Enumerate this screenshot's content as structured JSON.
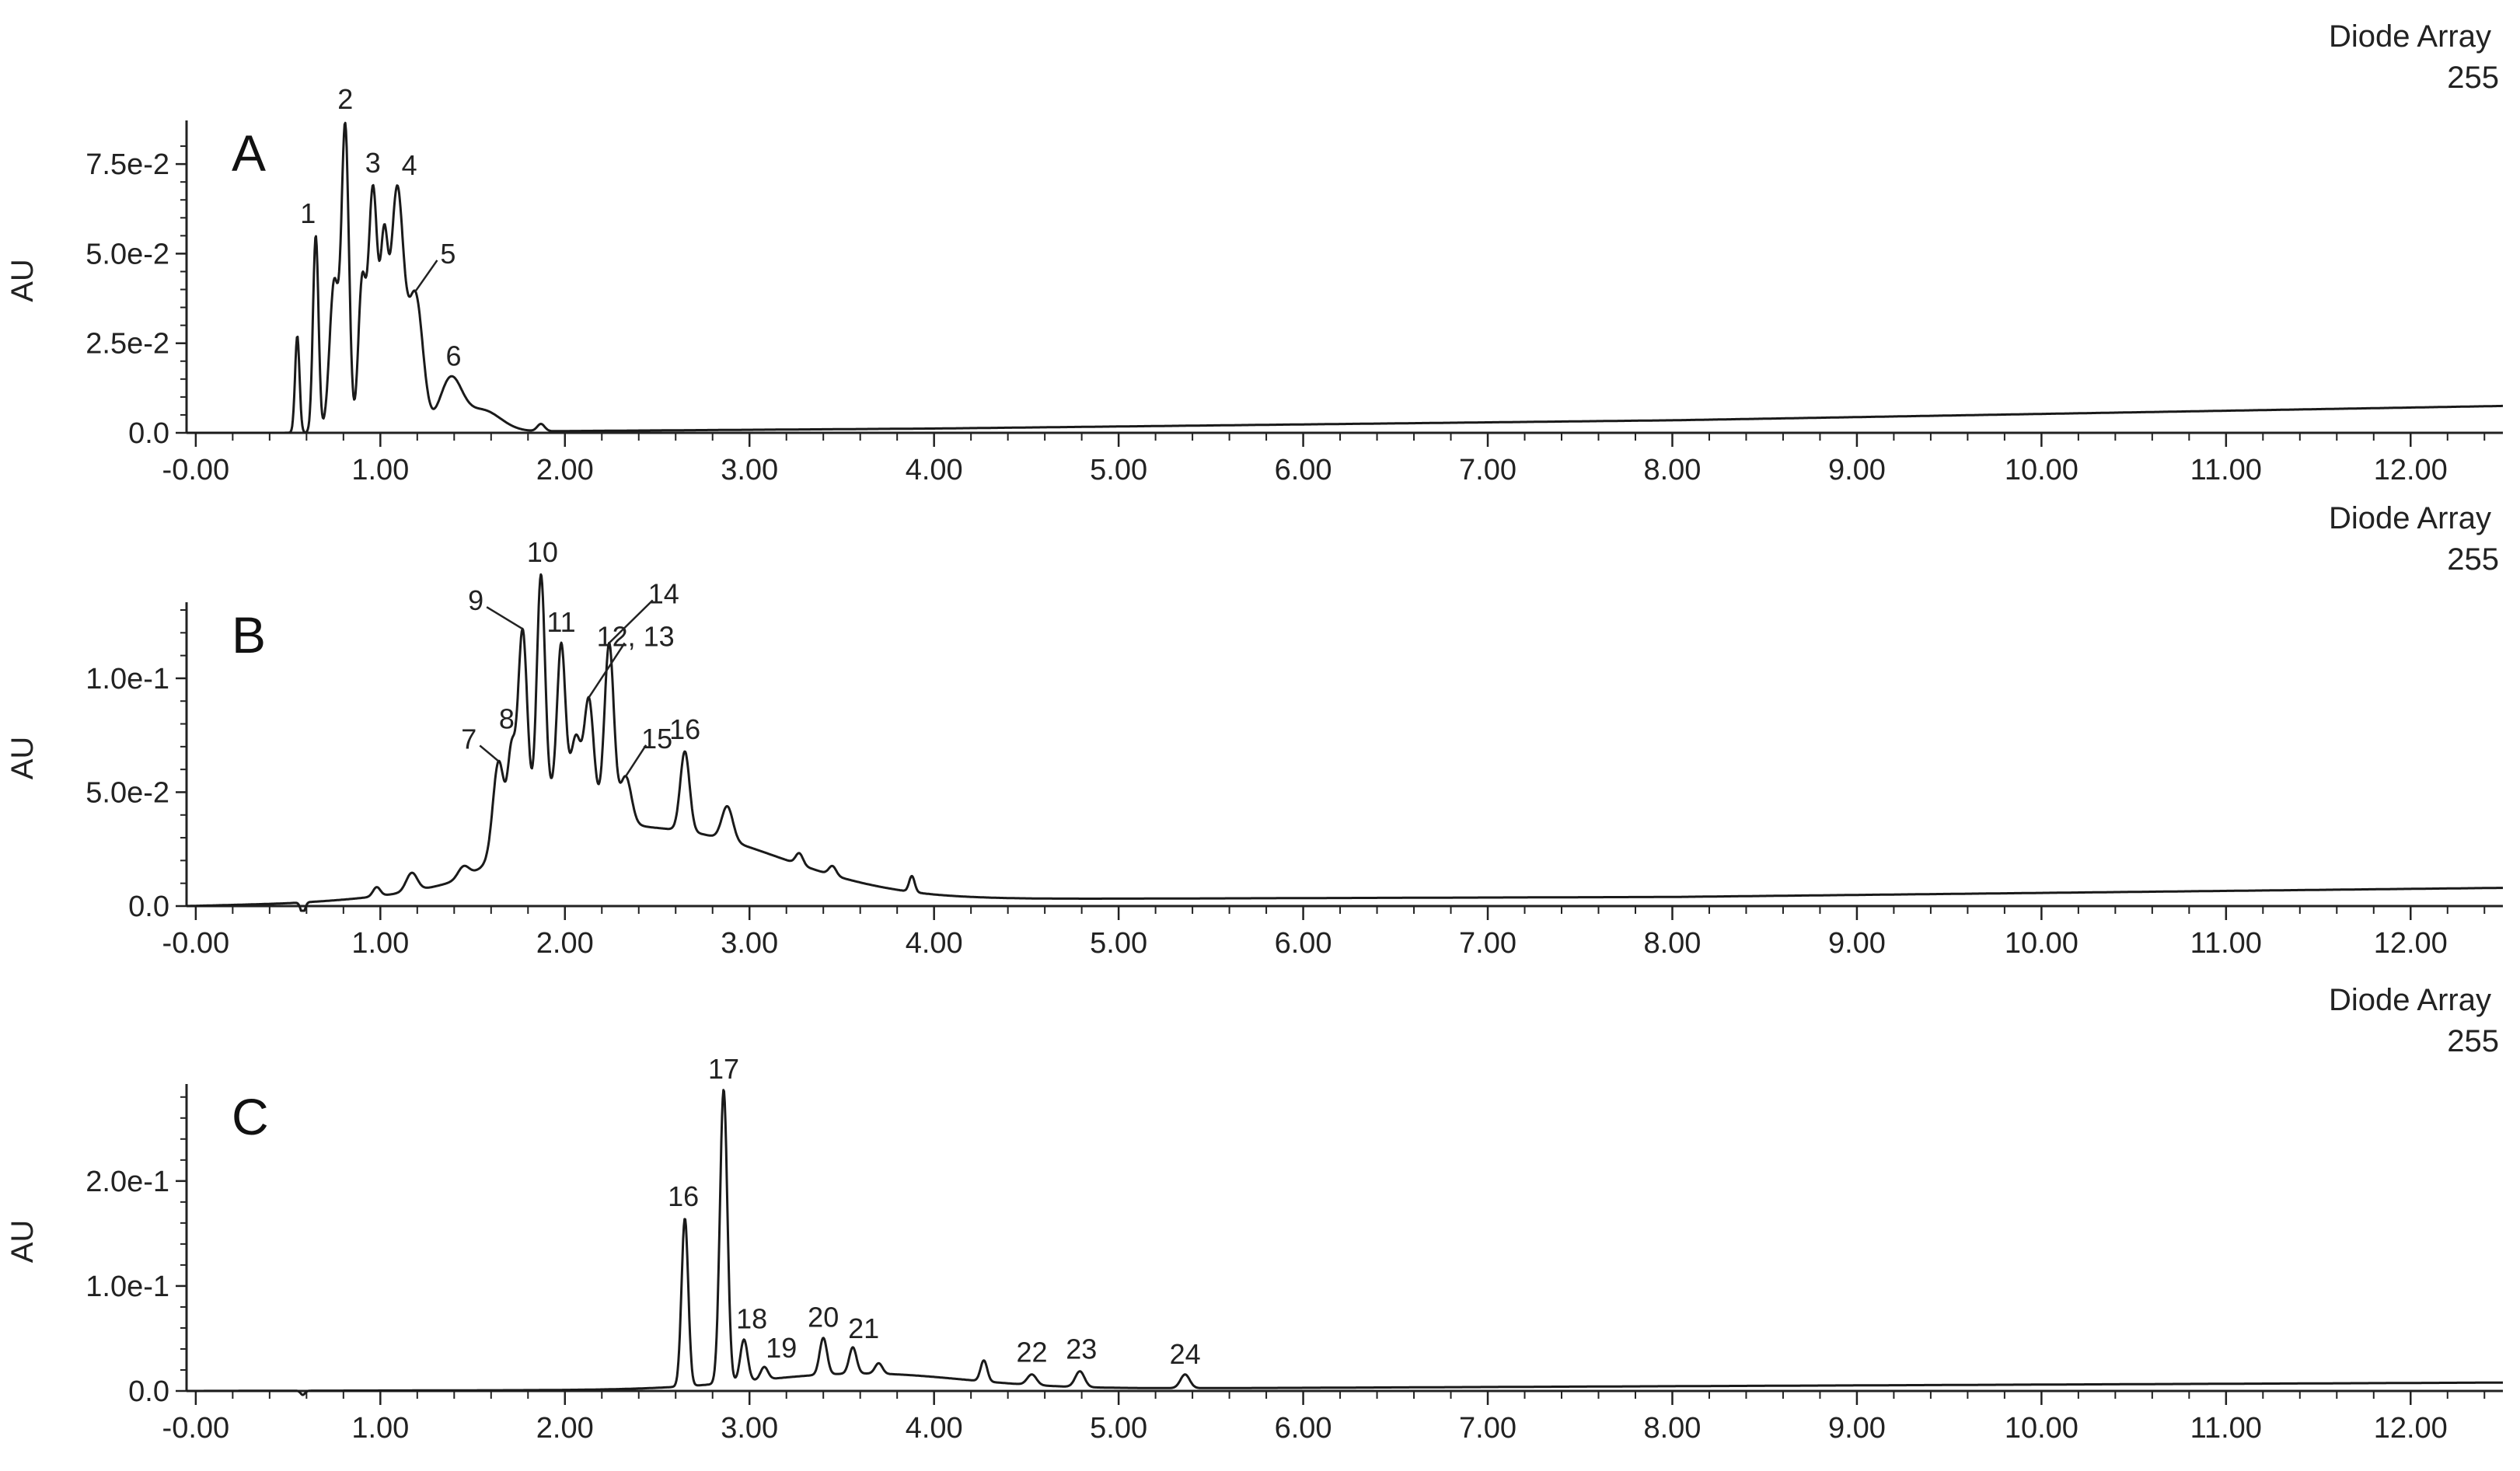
{
  "chart_data": [
    {
      "type": "line",
      "panel_label": "A",
      "detector": "Diode Array",
      "wavelength": "255",
      "ylabel": "AU",
      "xlim": [
        -0.05,
        12.5
      ],
      "ylim": [
        0,
        0.085
      ],
      "x_ticks": [
        0,
        1,
        2,
        3,
        4,
        5,
        6,
        7,
        8,
        9,
        10,
        11,
        12
      ],
      "x_tick_labels": [
        "-0.00",
        "1.00",
        "2.00",
        "3.00",
        "4.00",
        "5.00",
        "6.00",
        "7.00",
        "8.00",
        "9.00",
        "10.00",
        "11.00",
        "12.00"
      ],
      "y_ticks": [
        0,
        0.025,
        0.05,
        0.075
      ],
      "y_tick_labels": [
        "0.0",
        "2.5e-2",
        "5.0e-2",
        "7.5e-2"
      ],
      "baseline": [
        [
          -0.05,
          0.0
        ],
        [
          0.45,
          0.0
        ],
        [
          2.0,
          0.0005
        ],
        [
          4.0,
          0.0012
        ],
        [
          8.0,
          0.0035
        ],
        [
          12.5,
          0.0075
        ]
      ],
      "peaks": [
        {
          "x": 0.55,
          "y": 0.027,
          "w": 0.012
        },
        {
          "label": "1",
          "x": 0.65,
          "y": 0.055,
          "w": 0.015
        },
        {
          "x": 0.75,
          "y": 0.042,
          "w": 0.025
        },
        {
          "label": "2",
          "x": 0.81,
          "y": 0.084,
          "w": 0.02
        },
        {
          "x": 0.9,
          "y": 0.04,
          "w": 0.02
        },
        {
          "label": "3",
          "x": 0.96,
          "y": 0.068,
          "w": 0.025
        },
        {
          "x": 1.02,
          "y": 0.045,
          "w": 0.02
        },
        {
          "label": "4",
          "x": 1.09,
          "y": 0.067,
          "w": 0.035
        },
        {
          "label": "5",
          "x": 1.19,
          "y": 0.038,
          "w": 0.04
        },
        {
          "label": "6",
          "x": 1.38,
          "y": 0.014,
          "w": 0.06
        },
        {
          "x": 1.55,
          "y": 0.006,
          "w": 0.1
        },
        {
          "x": 1.87,
          "y": 0.002,
          "w": 0.02
        }
      ]
    },
    {
      "type": "line",
      "panel_label": "B",
      "detector": "Diode Array",
      "wavelength": "255",
      "ylabel": "AU",
      "xlim": [
        -0.05,
        12.5
      ],
      "ylim": [
        0,
        0.13
      ],
      "x_ticks": [
        0,
        1,
        2,
        3,
        4,
        5,
        6,
        7,
        8,
        9,
        10,
        11,
        12
      ],
      "x_tick_labels": [
        "-0.00",
        "1.00",
        "2.00",
        "3.00",
        "4.00",
        "5.00",
        "6.00",
        "7.00",
        "8.00",
        "9.00",
        "10.00",
        "11.00",
        "12.00"
      ],
      "y_ticks": [
        0,
        0.05,
        0.1
      ],
      "y_tick_labels": [
        "0.0",
        "5.0e-2",
        "1.0e-1"
      ],
      "baseline": [
        [
          -0.05,
          0.0
        ],
        [
          0.5,
          0.001
        ],
        [
          1.2,
          0.003
        ],
        [
          2.0,
          0.004
        ],
        [
          4.0,
          0.003
        ],
        [
          8.0,
          0.004
        ],
        [
          12.5,
          0.008
        ]
      ],
      "broad": [
        {
          "x": 2.5,
          "y": 0.03,
          "w": 0.65
        },
        {
          "x": 1.95,
          "y": 0.025,
          "w": 0.2
        }
      ],
      "peaks": [
        {
          "x": 0.58,
          "y": -0.005,
          "w": 0.012
        },
        {
          "x": 0.98,
          "y": 0.004,
          "w": 0.02
        },
        {
          "x": 1.17,
          "y": 0.008,
          "w": 0.03
        },
        {
          "x": 1.45,
          "y": 0.005,
          "w": 0.03
        },
        {
          "label": "7",
          "x": 1.64,
          "y": 0.04,
          "w": 0.03
        },
        {
          "label": "8",
          "x": 1.71,
          "y": 0.035,
          "w": 0.02
        },
        {
          "label": "9",
          "x": 1.77,
          "y": 0.085,
          "w": 0.025
        },
        {
          "label": "10",
          "x": 1.87,
          "y": 0.1,
          "w": 0.022
        },
        {
          "label": "11",
          "x": 1.98,
          "y": 0.065,
          "w": 0.022
        },
        {
          "x": 2.06,
          "y": 0.025,
          "w": 0.025
        },
        {
          "label": "12, 13",
          "x": 2.13,
          "y": 0.045,
          "w": 0.025
        },
        {
          "label": "14",
          "x": 2.24,
          "y": 0.075,
          "w": 0.025
        },
        {
          "label": "15",
          "x": 2.33,
          "y": 0.02,
          "w": 0.03
        },
        {
          "label": "16",
          "x": 2.65,
          "y": 0.035,
          "w": 0.025
        },
        {
          "x": 2.88,
          "y": 0.015,
          "w": 0.03
        },
        {
          "x": 3.27,
          "y": 0.005,
          "w": 0.02
        },
        {
          "x": 3.45,
          "y": 0.004,
          "w": 0.02
        },
        {
          "x": 3.88,
          "y": 0.007,
          "w": 0.015
        }
      ]
    },
    {
      "type": "line",
      "panel_label": "C",
      "detector": "Diode Array",
      "wavelength": "255",
      "ylabel": "AU",
      "xlim": [
        -0.05,
        12.5
      ],
      "ylim": [
        0,
        0.285
      ],
      "x_ticks": [
        0,
        1,
        2,
        3,
        4,
        5,
        6,
        7,
        8,
        9,
        10,
        11,
        12
      ],
      "x_tick_labels": [
        "-0.00",
        "1.00",
        "2.00",
        "3.00",
        "4.00",
        "5.00",
        "6.00",
        "7.00",
        "8.00",
        "9.00",
        "10.00",
        "11.00",
        "12.00"
      ],
      "y_ticks": [
        0,
        0.1,
        0.2
      ],
      "y_tick_labels": [
        "0.0",
        "1.0e-1",
        "2.0e-1"
      ],
      "baseline": [
        [
          -0.05,
          0.0
        ],
        [
          2.5,
          0.001
        ],
        [
          6.0,
          0.003
        ],
        [
          12.5,
          0.008
        ]
      ],
      "broad": [
        {
          "x": 3.6,
          "y": 0.015,
          "w": 0.55
        }
      ],
      "peaks": [
        {
          "x": 0.58,
          "y": -0.004,
          "w": 0.012
        },
        {
          "label": "16",
          "x": 2.65,
          "y": 0.16,
          "w": 0.018
        },
        {
          "label": "17",
          "x": 2.86,
          "y": 0.28,
          "w": 0.02
        },
        {
          "label": "18",
          "x": 2.97,
          "y": 0.04,
          "w": 0.02
        },
        {
          "label": "19",
          "x": 3.08,
          "y": 0.012,
          "w": 0.02
        },
        {
          "label": "20",
          "x": 3.4,
          "y": 0.035,
          "w": 0.02
        },
        {
          "label": "21",
          "x": 3.56,
          "y": 0.025,
          "w": 0.02
        },
        {
          "x": 3.7,
          "y": 0.01,
          "w": 0.02
        },
        {
          "x": 4.27,
          "y": 0.02,
          "w": 0.018
        },
        {
          "label": "22",
          "x": 4.53,
          "y": 0.01,
          "w": 0.025
        },
        {
          "label": "23",
          "x": 4.79,
          "y": 0.015,
          "w": 0.025
        },
        {
          "label": "24",
          "x": 5.36,
          "y": 0.013,
          "w": 0.025
        }
      ]
    }
  ]
}
